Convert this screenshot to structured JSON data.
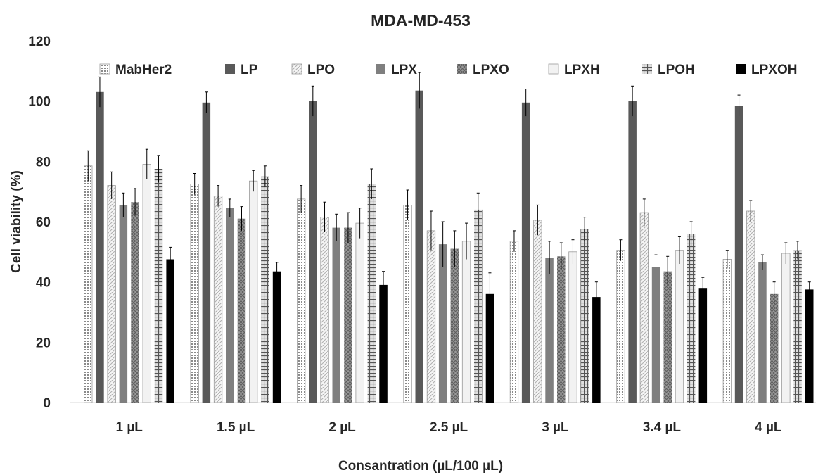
{
  "chart_data": {
    "type": "bar",
    "title": "MDA-MD-453",
    "xlabel": "Consantration (µL/100 µL)",
    "ylabel": "Cell viability (%)",
    "ylim": [
      0,
      120
    ],
    "yticks": [
      "0",
      "20",
      "40",
      "60",
      "80",
      "100",
      "120"
    ],
    "grid": false,
    "legend_position": "top",
    "categories": [
      "1 µL",
      "1.5 µL",
      "2 µL",
      "2.5 µL",
      "3 µL",
      "3.4 µL",
      "4 µL"
    ],
    "series": [
      {
        "name": "MabHer2",
        "pattern": "dots",
        "color": "#bfbfbf",
        "values": [
          78.5,
          72.5,
          67.5,
          65.5,
          53.5,
          50.5,
          47.5
        ],
        "errors": [
          5,
          3.5,
          4.5,
          5,
          3.5,
          3.5,
          3
        ]
      },
      {
        "name": "LP",
        "pattern": "solid-dark",
        "color": "#595959",
        "values": [
          103,
          99.5,
          100,
          103.5,
          99.5,
          100,
          98.5
        ],
        "errors": [
          5,
          3.5,
          5,
          6,
          4.5,
          5,
          3.5
        ]
      },
      {
        "name": "LPO",
        "pattern": "diagonal",
        "color": "#d9d9d9",
        "values": [
          72,
          68.5,
          61.5,
          57,
          60.5,
          63,
          63.5
        ],
        "errors": [
          4.5,
          3.5,
          5,
          6.5,
          5,
          4.5,
          3.5
        ]
      },
      {
        "name": "LPX",
        "pattern": "solid-mid",
        "color": "#7f7f7f",
        "values": [
          65.5,
          64.5,
          58,
          52.5,
          48,
          45,
          46.5
        ],
        "errors": [
          4,
          3,
          4.5,
          7.5,
          5.5,
          4,
          2.5
        ]
      },
      {
        "name": "LPXO",
        "pattern": "crosshatch",
        "color": "#8c8c8c",
        "values": [
          66.5,
          61,
          58,
          51,
          48.5,
          43.5,
          36
        ],
        "errors": [
          4.5,
          4,
          5,
          6,
          4.5,
          5,
          4
        ]
      },
      {
        "name": "LPXH",
        "pattern": "white",
        "color": "#f2f2f2",
        "values": [
          79,
          73.5,
          59.5,
          53.5,
          50,
          50.5,
          49.5
        ],
        "errors": [
          5,
          3.5,
          5,
          6,
          4,
          4.5,
          3.5
        ]
      },
      {
        "name": "LPOH",
        "pattern": "grid",
        "color": "#737373",
        "values": [
          77.5,
          75,
          72.5,
          64,
          57.5,
          56,
          50.5
        ],
        "errors": [
          4.5,
          3.5,
          5,
          5.5,
          4,
          4,
          3
        ]
      },
      {
        "name": "LPXOH",
        "pattern": "solid-black",
        "color": "#000000",
        "values": [
          47.5,
          43.5,
          39,
          36,
          35,
          38,
          37.5
        ],
        "errors": [
          4,
          3,
          4.5,
          7,
          5,
          3.5,
          2.5
        ]
      }
    ]
  }
}
